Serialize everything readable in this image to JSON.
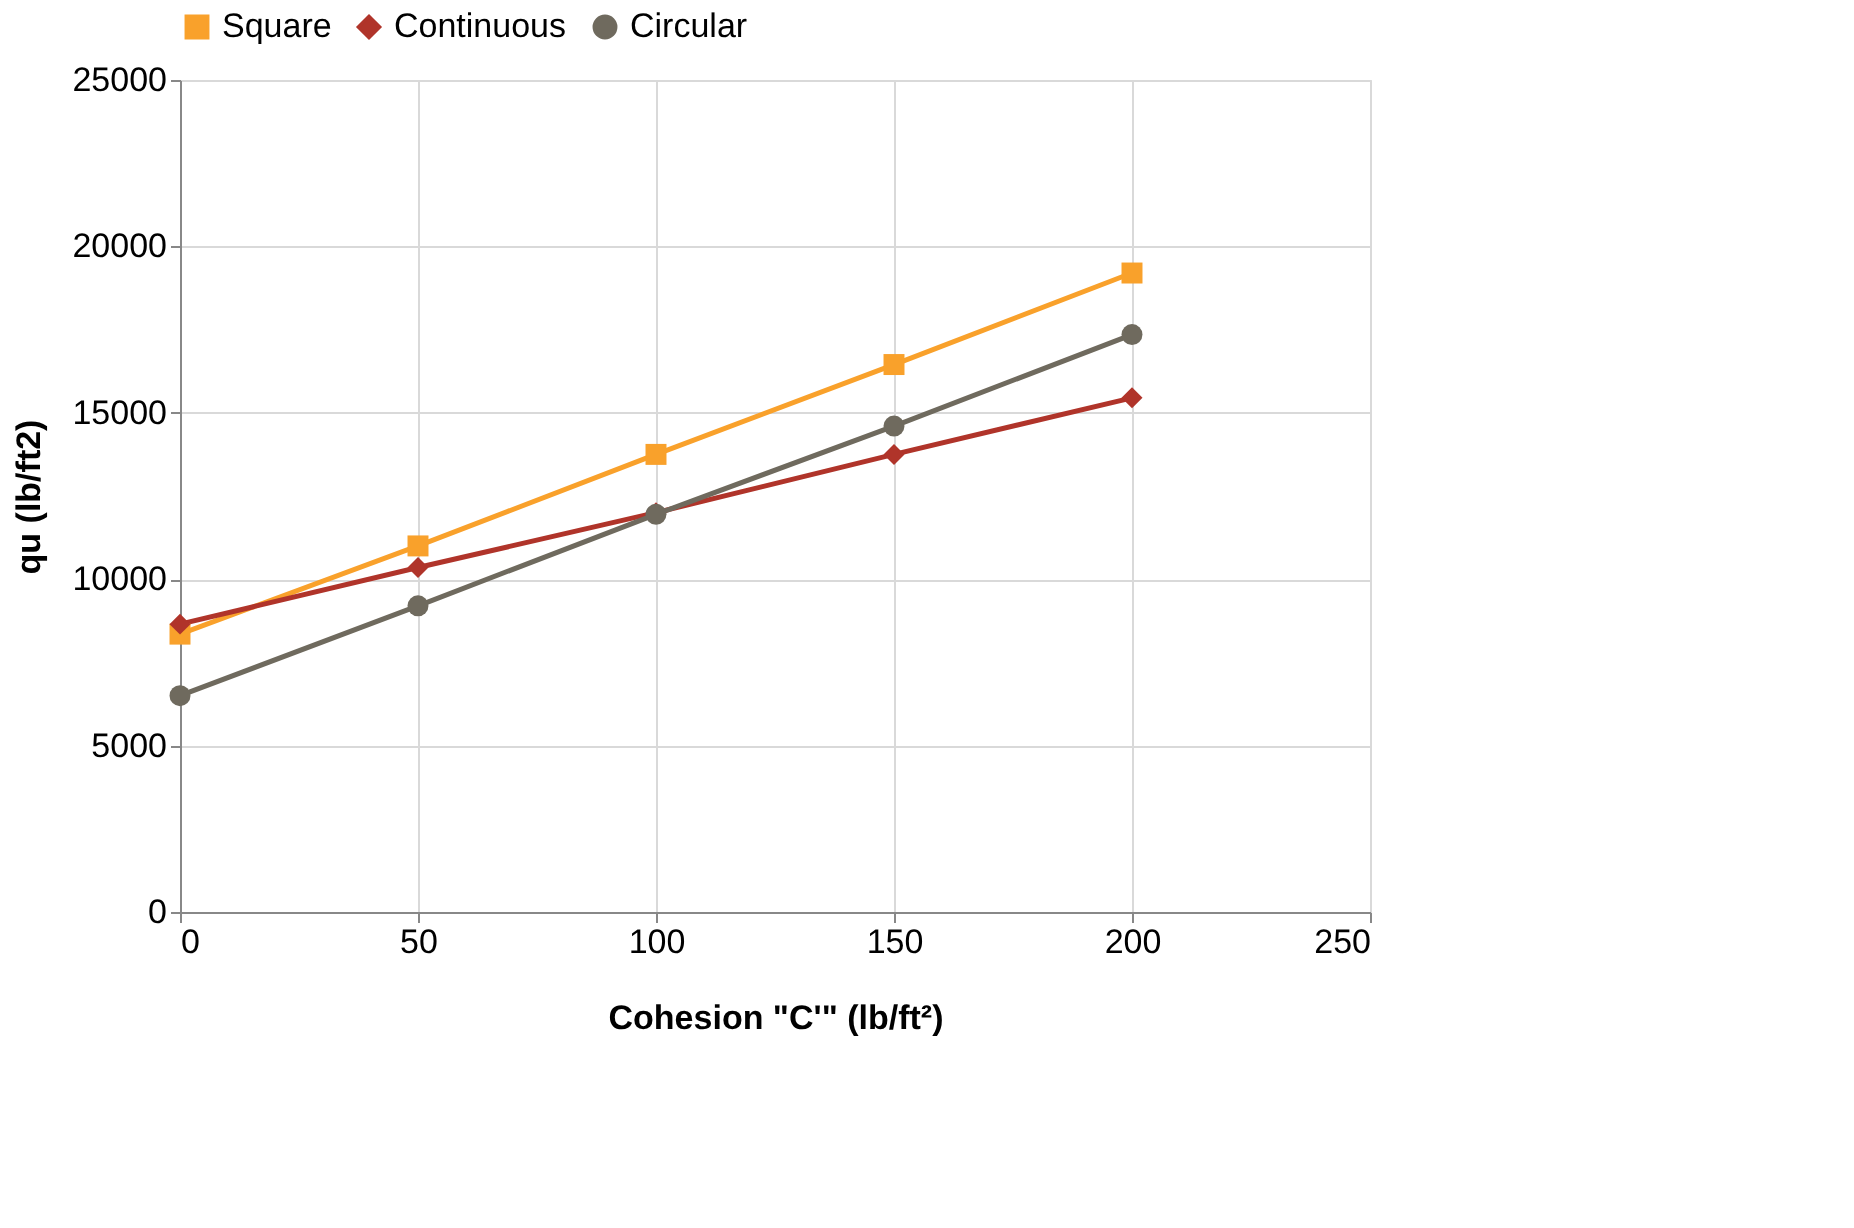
{
  "chart_data": {
    "type": "line",
    "xlabel": "Cohesion \"C'\" (lb/ft²)",
    "ylabel": "qu (lb/ft2)",
    "x": [
      0,
      50,
      100,
      150,
      200
    ],
    "series": [
      {
        "name": "Square",
        "color": "#f9a12b",
        "marker": "square",
        "values": [
          8350,
          11000,
          13750,
          16450,
          19200
        ]
      },
      {
        "name": "Continuous",
        "color": "#b0342a",
        "marker": "diamond",
        "values": [
          8650,
          10350,
          12000,
          13750,
          15450
        ]
      },
      {
        "name": "Circular",
        "color": "#6f6a5e",
        "marker": "circle",
        "values": [
          6500,
          9200,
          11950,
          14600,
          17350
        ]
      }
    ],
    "xlim": [
      0,
      250
    ],
    "xticks": [
      0,
      50,
      100,
      150,
      200,
      250
    ],
    "ylim": [
      0,
      25000
    ],
    "yticks": [
      0,
      5000,
      10000,
      15000,
      20000,
      25000
    ],
    "grid": true,
    "legend": "top",
    "line_style": "solid"
  }
}
